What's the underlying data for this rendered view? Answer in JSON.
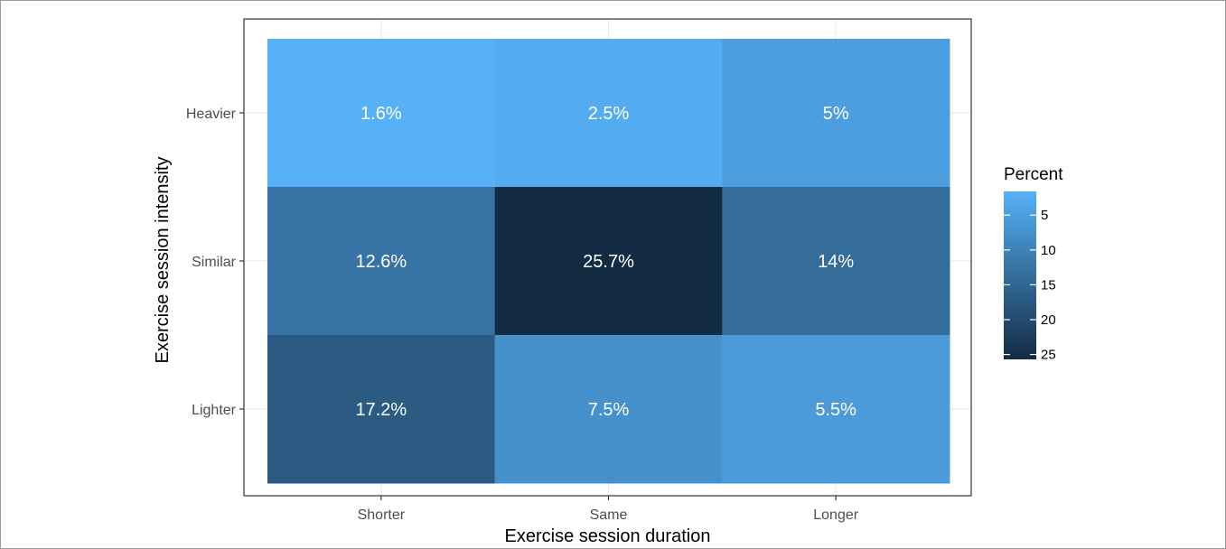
{
  "chart_data": {
    "type": "heatmap",
    "title": "",
    "xlabel": "Exercise session duration",
    "ylabel": "Exercise session intensity",
    "x_categories": [
      "Shorter",
      "Same",
      "Longer"
    ],
    "y_categories": [
      "Heavier",
      "Similar",
      "Lighter"
    ],
    "cells": [
      {
        "x": "Shorter",
        "y": "Heavier",
        "value": 1.6,
        "label": "1.6%"
      },
      {
        "x": "Same",
        "y": "Heavier",
        "value": 2.5,
        "label": "2.5%"
      },
      {
        "x": "Longer",
        "y": "Heavier",
        "value": 5.0,
        "label": "5%"
      },
      {
        "x": "Shorter",
        "y": "Similar",
        "value": 12.6,
        "label": "12.6%"
      },
      {
        "x": "Same",
        "y": "Similar",
        "value": 25.7,
        "label": "25.7%"
      },
      {
        "x": "Longer",
        "y": "Similar",
        "value": 14.0,
        "label": "14%"
      },
      {
        "x": "Shorter",
        "y": "Lighter",
        "value": 17.2,
        "label": "17.2%"
      },
      {
        "x": "Same",
        "y": "Lighter",
        "value": 7.5,
        "label": "7.5%"
      },
      {
        "x": "Longer",
        "y": "Lighter",
        "value": 5.5,
        "label": "5.5%"
      }
    ],
    "legend": {
      "title": "Percent",
      "ticks": [
        "5",
        "10",
        "15",
        "20",
        "25"
      ],
      "tick_values": [
        5,
        10,
        15,
        20,
        25
      ],
      "range": [
        1.6,
        25.7
      ],
      "placement": "right"
    },
    "color_scale": {
      "low": "#56B1F7",
      "high": "#132B43"
    },
    "grid": true,
    "panel_border": true
  }
}
